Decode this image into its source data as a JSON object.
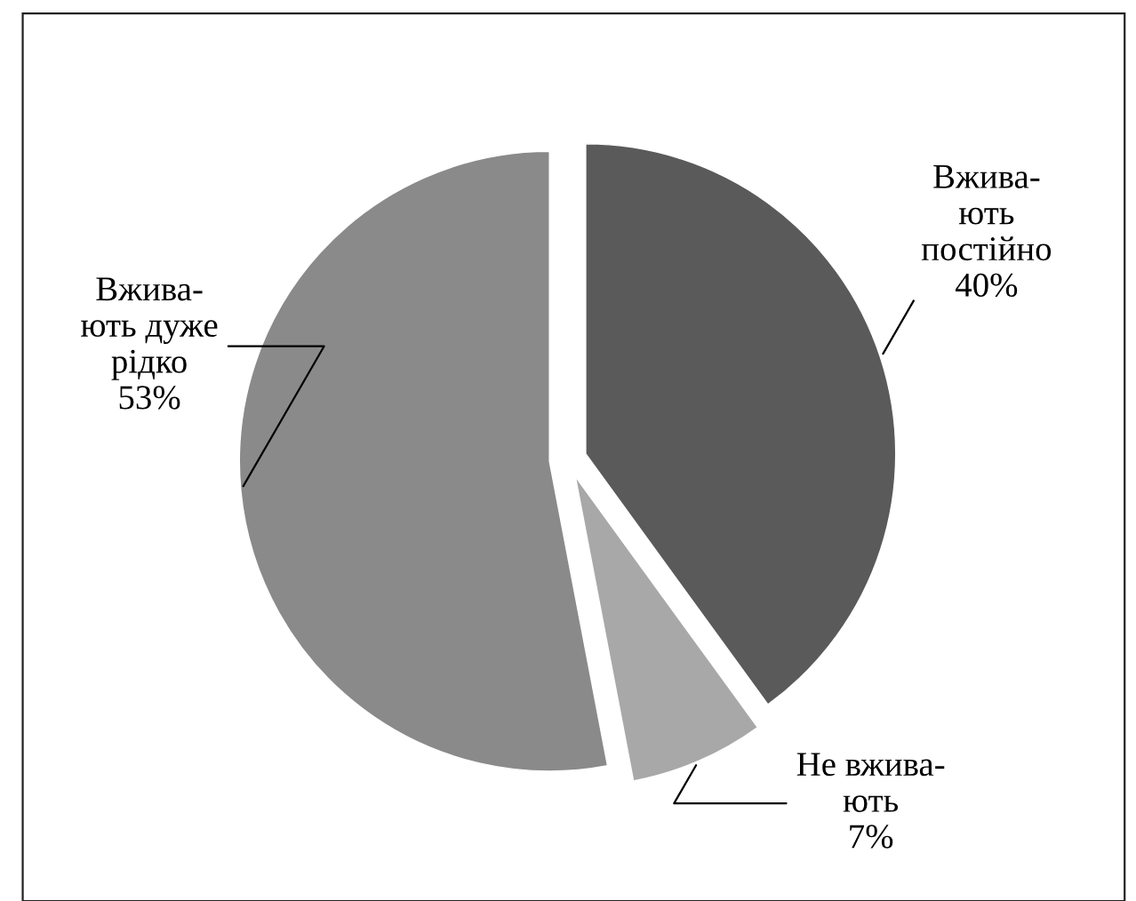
{
  "chart_data": {
    "type": "pie",
    "categories": [
      "Вжива-\nють\nпостійно",
      "Не вжива-\nють",
      "Вжива-\nють дуже\nрідко"
    ],
    "values": [
      40,
      7,
      53
    ],
    "value_labels": [
      "40%",
      "7%",
      "53%"
    ],
    "colors": [
      "#5a5a5a",
      "#a8a8a8",
      "#8a8a8a"
    ]
  }
}
